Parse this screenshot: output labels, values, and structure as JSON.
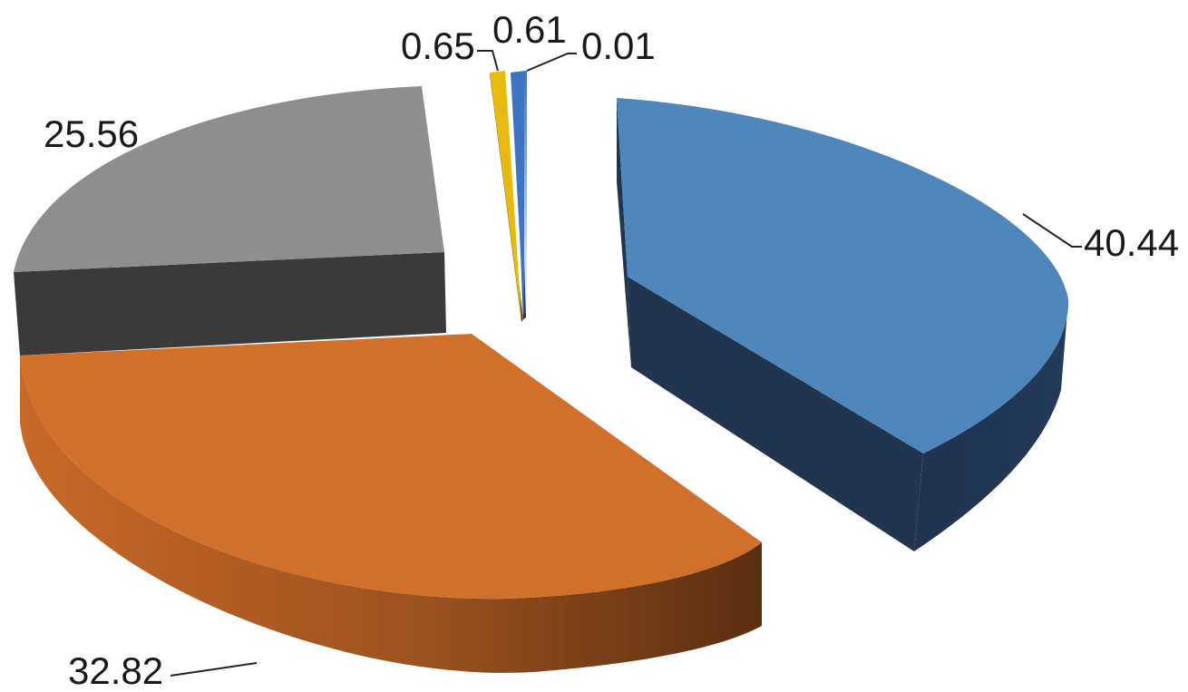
{
  "chart_data": {
    "type": "pie",
    "style": "3d-exploded",
    "title": "",
    "legend": "none",
    "slices": [
      {
        "label": "40.44",
        "value": 40.44,
        "color": "#4F86BC",
        "side_color": "#22354E"
      },
      {
        "label": "32.82",
        "value": 32.82,
        "color": "#D0702B",
        "side_color": "#8F4A18"
      },
      {
        "label": "25.56",
        "value": 25.56,
        "color": "#8E8E8E",
        "side_color": "#3A3A3A"
      },
      {
        "label": "0.65",
        "value": 0.65,
        "color": "#E8B90F",
        "side_color": "#5E4708"
      },
      {
        "label": "0.61",
        "value": 0.61,
        "color": "#3F74C4",
        "side_color": "#1E3458"
      },
      {
        "label": "0.01",
        "value": 0.01,
        "color": "#3F74C4",
        "side_color": "#1E3458"
      }
    ]
  }
}
